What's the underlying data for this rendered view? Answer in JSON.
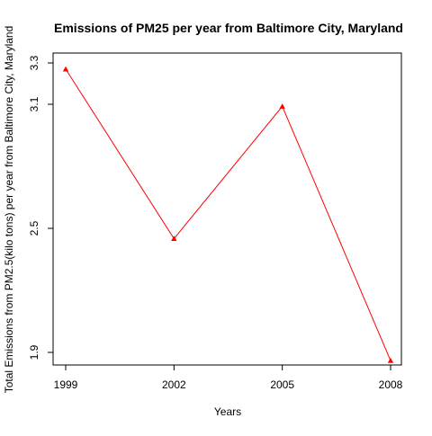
{
  "chart_data": {
    "type": "line",
    "title": "Emissions of PM25 per year from Baltimore City, Maryland",
    "xlabel": "Years",
    "ylabel": "Total Emissions from PM2.5(kilo tons) per year from Baltimore City, Maryland",
    "x": [
      "1999",
      "2002",
      "2005",
      "2008"
    ],
    "xticks": [
      "1999",
      "2002",
      "2005",
      "2008"
    ],
    "yticks": [
      "1.9",
      "2.5",
      "3.1",
      "3.3"
    ],
    "ylim": [
      1.9,
      3.3
    ],
    "series": [
      {
        "values": [
          3.27,
          2.45,
          3.09,
          1.86
        ],
        "line_color": "#ff0000",
        "marker": "triangle",
        "marker_color": "#ff0000"
      }
    ],
    "grid": false,
    "legend": "none"
  }
}
